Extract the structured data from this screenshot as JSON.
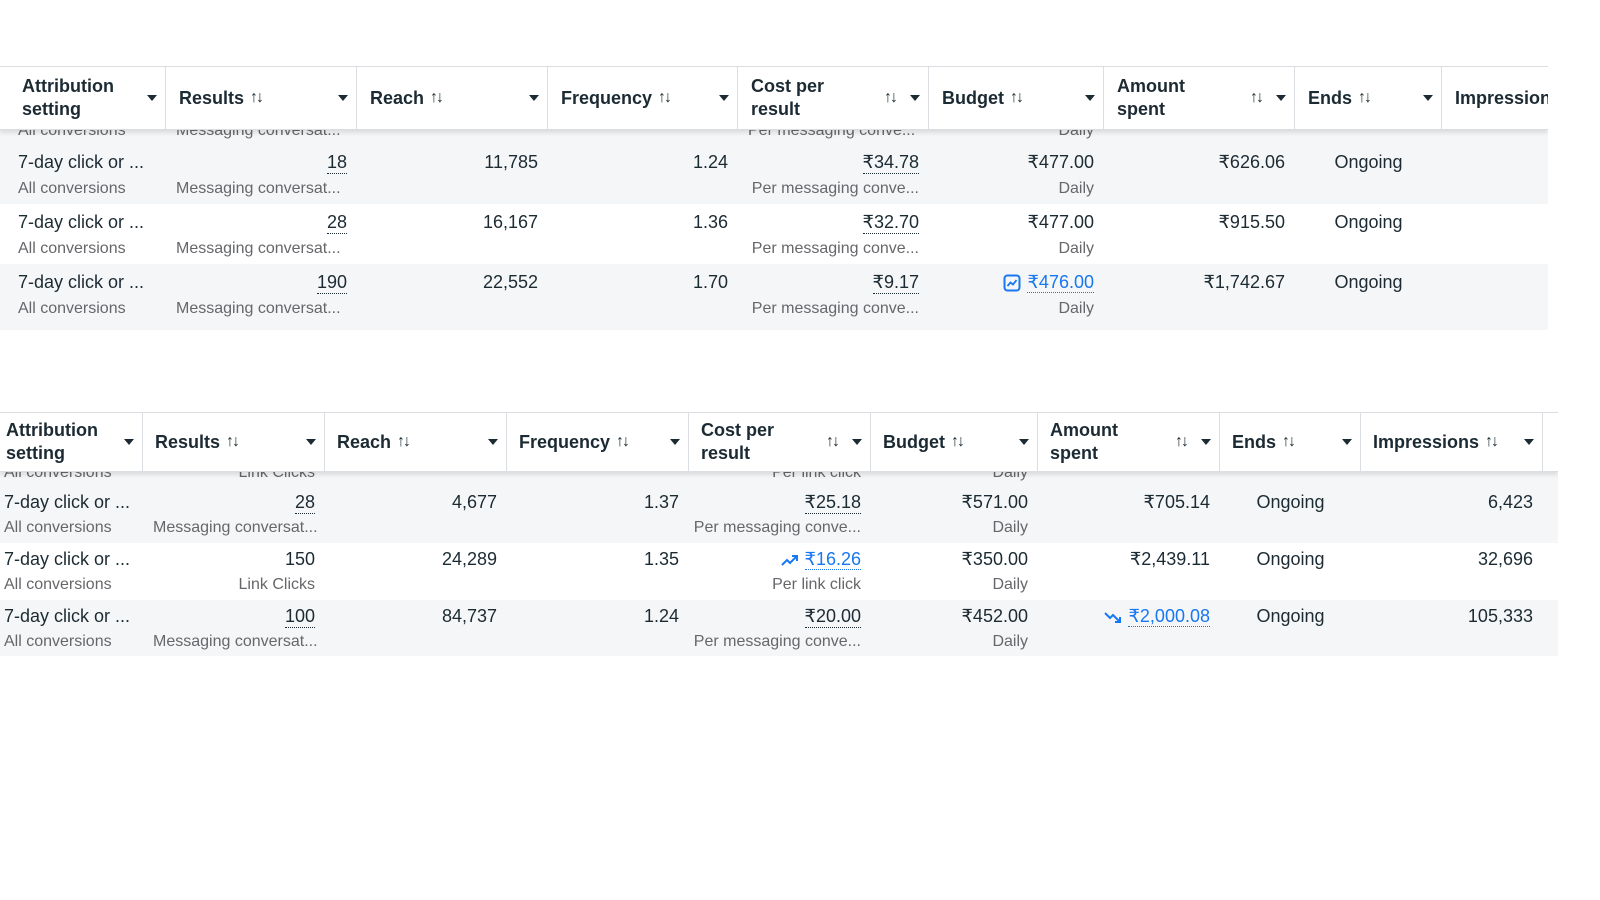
{
  "top_table": {
    "headers": {
      "attribution": [
        "Attribution",
        "setting"
      ],
      "results": "Results",
      "reach": "Reach",
      "frequency": "Frequency",
      "cost_per_result": [
        "Cost per",
        "result"
      ],
      "budget": "Budget",
      "amount_spent": [
        "Amount",
        "spent"
      ],
      "ends": "Ends",
      "impressions": "Impression"
    },
    "peek": {
      "attribution": "All conversions",
      "results": "Messaging conversat...",
      "cost_per_result": "Per messaging conve...",
      "budget": "Daily"
    },
    "rows": [
      {
        "attribution": "7-day click or ...",
        "attribution_sub": "All conversions",
        "results": "18",
        "results_sub": "Messaging conversat...",
        "reach": "11,785",
        "frequency": "1.24",
        "cost_per_result": "₹34.78",
        "cost_per_result_sub": "Per messaging conve...",
        "budget": "₹477.00",
        "budget_sub": "Daily",
        "amount_spent": "₹626.06",
        "ends": "Ongoing"
      },
      {
        "attribution": "7-day click or ...",
        "attribution_sub": "All conversions",
        "results": "28",
        "results_sub": "Messaging conversat...",
        "reach": "16,167",
        "frequency": "1.36",
        "cost_per_result": "₹32.70",
        "cost_per_result_sub": "Per messaging conve...",
        "budget": "₹477.00",
        "budget_sub": "Daily",
        "amount_spent": "₹915.50",
        "ends": "Ongoing"
      },
      {
        "attribution": "7-day click or ...",
        "attribution_sub": "All conversions",
        "results": "190",
        "results_sub": "Messaging conversat...",
        "reach": "22,552",
        "frequency": "1.70",
        "cost_per_result": "₹9.17",
        "cost_per_result_sub": "Per messaging conve...",
        "budget": "₹476.00",
        "budget_sub": "Daily",
        "budget_icon": "chart-trend-icon",
        "amount_spent": "₹1,742.67",
        "ends": "Ongoing"
      }
    ]
  },
  "bottom_table": {
    "headers": {
      "attribution": [
        "Attribution",
        "setting"
      ],
      "results": "Results",
      "reach": "Reach",
      "frequency": "Frequency",
      "cost_per_result": [
        "Cost per",
        "result"
      ],
      "budget": "Budget",
      "amount_spent": [
        "Amount",
        "spent"
      ],
      "ends": "Ends",
      "impressions": "Impressions"
    },
    "peek": {
      "attribution": "All conversions",
      "results": "Link Clicks",
      "cost_per_result": "Per link click",
      "budget": "Daily"
    },
    "rows": [
      {
        "attribution": "7-day click or ...",
        "attribution_sub": "All conversions",
        "results": "28",
        "results_sub": "Messaging conversat...",
        "reach": "4,677",
        "frequency": "1.37",
        "cost_per_result": "₹25.18",
        "cost_per_result_sub": "Per messaging conve...",
        "budget": "₹571.00",
        "budget_sub": "Daily",
        "amount_spent": "₹705.14",
        "ends": "Ongoing",
        "impressions": "6,423"
      },
      {
        "attribution": "7-day click or ...",
        "attribution_sub": "All conversions",
        "results": "150",
        "results_sub": "Link Clicks",
        "reach": "24,289",
        "frequency": "1.35",
        "cost_per_result": "₹16.26",
        "cost_per_result_sub": "Per link click",
        "cost_icon": "trend-up-icon",
        "budget": "₹350.00",
        "budget_sub": "Daily",
        "amount_spent": "₹2,439.11",
        "ends": "Ongoing",
        "impressions": "32,696"
      },
      {
        "attribution": "7-day click or ...",
        "attribution_sub": "All conversions",
        "results": "100",
        "results_sub": "Messaging conversat...",
        "reach": "84,737",
        "frequency": "1.24",
        "cost_per_result": "₹20.00",
        "cost_per_result_sub": "Per messaging conve...",
        "budget": "₹452.00",
        "budget_sub": "Daily",
        "amount_spent": "₹2,000.08",
        "amount_icon": "trend-down-icon",
        "ends": "Ongoing",
        "impressions": "105,333"
      }
    ]
  },
  "icons": {
    "sort": "sort-arrows-icon",
    "dropdown": "caret-down-icon"
  },
  "colors": {
    "link": "#1877f2",
    "text": "#1c2b33",
    "muted": "#65676b",
    "row_alt": "#f5f6f7"
  }
}
